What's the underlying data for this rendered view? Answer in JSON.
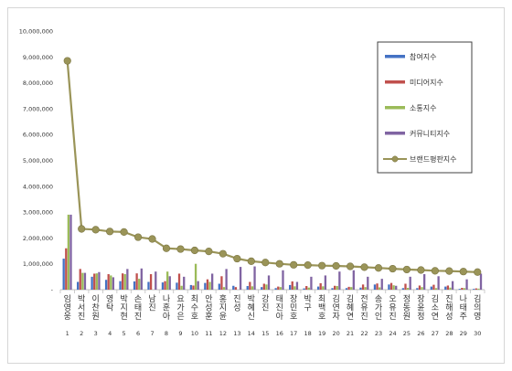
{
  "chart_data": {
    "type": "bar",
    "y_ticks": [
      "10,000,000",
      "9,000,000",
      "8,000,000",
      "7,000,000",
      "6,000,000",
      "5,000,000",
      "4,000,000",
      "3,000,000",
      "2,000,000",
      "1,000,000",
      "-"
    ],
    "ylim": [
      0,
      10000000
    ],
    "categories": [
      "임영웅",
      "박서진",
      "이찬원",
      "영탁",
      "박지현",
      "손태진",
      "남진",
      "나훈아",
      "요가은",
      "최수호",
      "안성훈",
      "홍지윤",
      "진성",
      "박혜신",
      "강진",
      "태진아",
      "장민호",
      "박구",
      "최백호",
      "김연자",
      "김혜연",
      "전유진",
      "송가인",
      "오유진",
      "정동원",
      "장윤정",
      "김소연",
      "진해성",
      "나태주",
      "김의영"
    ],
    "numbers": [
      "1",
      "2",
      "3",
      "4",
      "5",
      "6",
      "7",
      "8",
      "9",
      "10",
      "11",
      "12",
      "13",
      "14",
      "15",
      "16",
      "17",
      "18",
      "19",
      "20",
      "21",
      "22",
      "23",
      "24",
      "25",
      "26",
      "27",
      "28",
      "29",
      "30"
    ],
    "series": [
      {
        "name": "참여지수",
        "color": "#4472c4",
        "values": [
          1200000,
          300000,
          500000,
          380000,
          330000,
          320000,
          300000,
          280000,
          270000,
          180000,
          260000,
          230000,
          150000,
          140000,
          100000,
          60000,
          180000,
          50000,
          120000,
          60000,
          60000,
          80000,
          200000,
          200000,
          60000,
          60000,
          120000,
          120000,
          30000,
          30000
        ]
      },
      {
        "name": "미디어지수",
        "color": "#c0504d",
        "values": [
          1600000,
          800000,
          620000,
          600000,
          630000,
          630000,
          600000,
          330000,
          620000,
          160000,
          400000,
          520000,
          100000,
          300000,
          230000,
          120000,
          320000,
          140000,
          250000,
          150000,
          110000,
          200000,
          240000,
          260000,
          230000,
          160000,
          190000,
          160000,
          70000,
          50000
        ]
      },
      {
        "name": "소통지수",
        "color": "#9bbb59",
        "values": [
          2900000,
          650000,
          630000,
          550000,
          600000,
          420000,
          0,
          700000,
          150000,
          1000000,
          300000,
          100000,
          0,
          130000,
          200000,
          100000,
          130000,
          80000,
          130000,
          140000,
          100000,
          100000,
          90000,
          170000,
          70000,
          100000,
          60000,
          80000,
          60000,
          40000
        ]
      },
      {
        "name": "커뮤니티지수",
        "color": "#8064a2",
        "values": [
          2900000,
          650000,
          680000,
          480000,
          800000,
          820000,
          700000,
          520000,
          500000,
          330000,
          620000,
          800000,
          880000,
          900000,
          550000,
          750000,
          300000,
          500000,
          550000,
          700000,
          750000,
          500000,
          420000,
          150000,
          500000,
          600000,
          520000,
          330000,
          400000,
          620000
        ]
      },
      {
        "name": "브랜드평판지수",
        "color": "#9a9458",
        "values": [
          8850000,
          2350000,
          2320000,
          2250000,
          2230000,
          2030000,
          1960000,
          1600000,
          1570000,
          1520000,
          1480000,
          1390000,
          1200000,
          1100000,
          1050000,
          1000000,
          960000,
          950000,
          930000,
          920000,
          900000,
          870000,
          840000,
          810000,
          780000,
          760000,
          730000,
          720000,
          700000,
          680000
        ]
      }
    ],
    "legend_position": "top-right",
    "grid": false
  }
}
